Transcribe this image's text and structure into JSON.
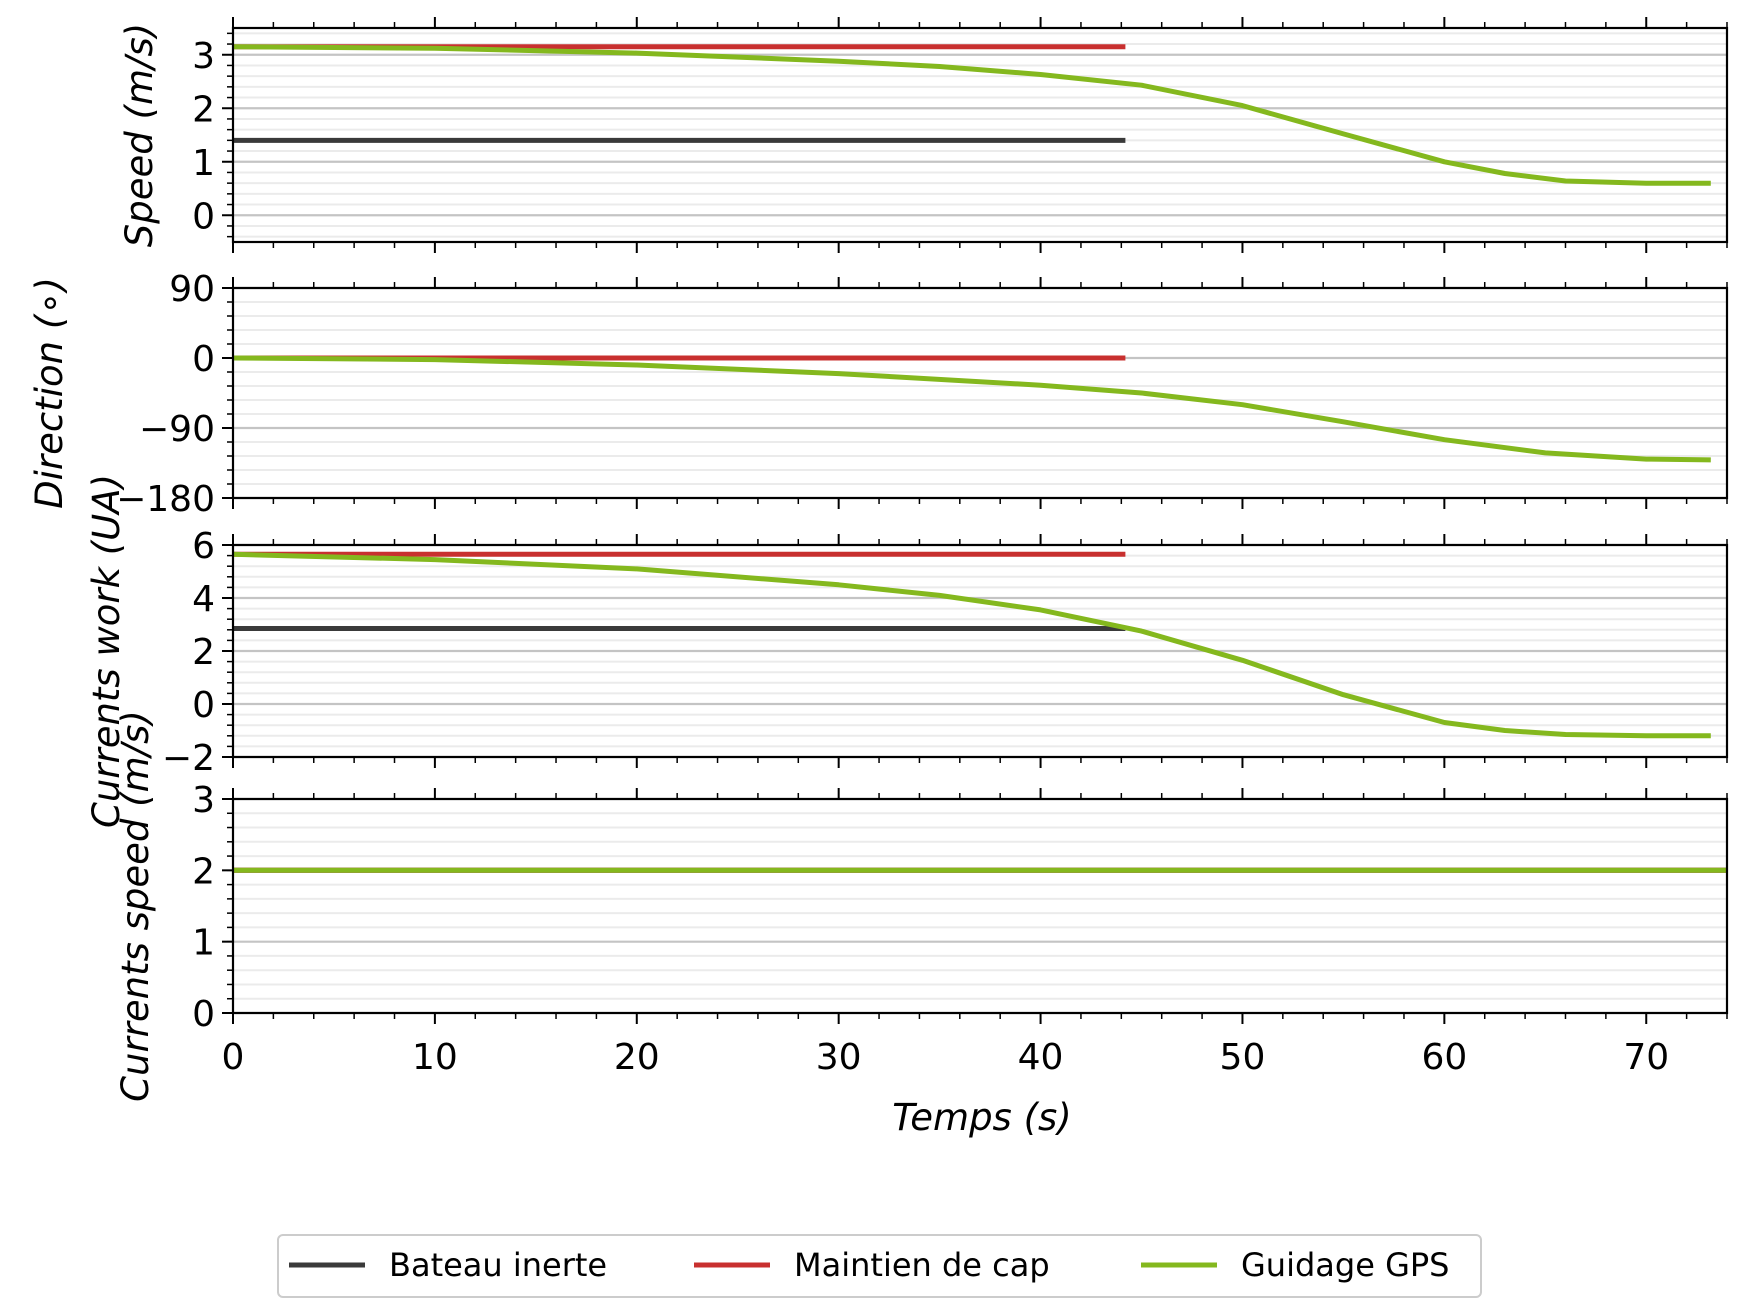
{
  "chart_data": {
    "type": "line",
    "x_axis": {
      "label": "Temps (s)",
      "range": [
        0,
        74
      ],
      "ticks": [
        0,
        10,
        20,
        30,
        40,
        50,
        60,
        70
      ],
      "tick_labels": [
        "0",
        "10",
        "20",
        "30",
        "40",
        "50",
        "60",
        "70"
      ]
    },
    "legend": {
      "placement": "bottom-center",
      "entries": [
        {
          "label": "Bateau inerte",
          "color": "#3a3a3a"
        },
        {
          "label": "Maintien de cap",
          "color": "#c8302f"
        },
        {
          "label": "Guidage GPS",
          "color": "#84b81e"
        }
      ]
    },
    "grid": true,
    "subplots": [
      {
        "ylabel": "Speed (m/s)",
        "ylim": [
          -0.5,
          3.5
        ],
        "yticks": [
          0,
          1,
          2,
          3
        ],
        "ytick_labels": [
          "0",
          "1",
          "2",
          "3"
        ],
        "series": [
          {
            "name": "Bateau inerte",
            "color": "#3a3a3a",
            "points": [
              [
                0,
                1.4
              ],
              [
                44.2,
                1.4
              ]
            ]
          },
          {
            "name": "Maintien de cap",
            "color": "#c8302f",
            "points": [
              [
                0,
                3.15
              ],
              [
                44.2,
                3.15
              ]
            ]
          },
          {
            "name": "Guidage GPS",
            "color": "#84b81e",
            "points": [
              [
                0,
                3.15
              ],
              [
                10,
                3.12
              ],
              [
                20,
                3.03
              ],
              [
                30,
                2.88
              ],
              [
                35,
                2.78
              ],
              [
                40,
                2.63
              ],
              [
                45,
                2.43
              ],
              [
                50,
                2.05
              ],
              [
                55,
                1.52
              ],
              [
                60,
                1.0
              ],
              [
                63,
                0.78
              ],
              [
                66,
                0.64
              ],
              [
                70,
                0.6
              ],
              [
                73.2,
                0.6
              ]
            ]
          }
        ]
      },
      {
        "ylabel": "Direction (∘)",
        "ylim": [
          -180,
          90
        ],
        "yticks": [
          90,
          0,
          -90,
          -180
        ],
        "ytick_labels": [
          "90",
          "0",
          "−90",
          "−180"
        ],
        "series": [
          {
            "name": "Maintien de cap",
            "color": "#c8302f",
            "points": [
              [
                0,
                0
              ],
              [
                44.2,
                0
              ]
            ]
          },
          {
            "name": "Guidage GPS",
            "color": "#84b81e",
            "points": [
              [
                0,
                0
              ],
              [
                10,
                -2
              ],
              [
                20,
                -9
              ],
              [
                30,
                -20
              ],
              [
                40,
                -35
              ],
              [
                45,
                -45
              ],
              [
                50,
                -60
              ],
              [
                55,
                -82
              ],
              [
                60,
                -105
              ],
              [
                65,
                -122
              ],
              [
                70,
                -130
              ],
              [
                73.2,
                -131
              ]
            ]
          }
        ]
      },
      {
        "ylabel": "Currents work (UA)",
        "ylim": [
          -2,
          6
        ],
        "yticks": [
          6,
          4,
          2,
          0,
          -2
        ],
        "ytick_labels": [
          "6",
          "4",
          "2",
          "0",
          "−2"
        ],
        "series": [
          {
            "name": "Bateau inerte",
            "color": "#3a3a3a",
            "points": [
              [
                0,
                2.85
              ],
              [
                44.2,
                2.85
              ]
            ]
          },
          {
            "name": "Maintien de cap",
            "color": "#c8302f",
            "points": [
              [
                0,
                5.65
              ],
              [
                44.2,
                5.65
              ]
            ]
          },
          {
            "name": "Guidage GPS",
            "color": "#84b81e",
            "points": [
              [
                0,
                5.65
              ],
              [
                10,
                5.45
              ],
              [
                20,
                5.1
              ],
              [
                30,
                4.5
              ],
              [
                35,
                4.1
              ],
              [
                40,
                3.55
              ],
              [
                45,
                2.75
              ],
              [
                50,
                1.65
              ],
              [
                55,
                0.35
              ],
              [
                60,
                -0.7
              ],
              [
                63,
                -1.0
              ],
              [
                66,
                -1.15
              ],
              [
                70,
                -1.2
              ],
              [
                73.2,
                -1.2
              ]
            ]
          }
        ]
      },
      {
        "ylabel": "Currents speed (m/s)",
        "ylim": [
          0,
          3
        ],
        "yticks": [
          3,
          2,
          1,
          0
        ],
        "ytick_labels": [
          "3",
          "2",
          "1",
          "0"
        ],
        "series": [
          {
            "name": "Bateau inerte",
            "color": "#3a3a3a",
            "points": [
              [
                0,
                2
              ],
              [
                74,
                2
              ]
            ]
          },
          {
            "name": "Maintien de cap",
            "color": "#c8302f",
            "points": [
              [
                0,
                2
              ],
              [
                74,
                2
              ]
            ]
          },
          {
            "name": "Guidage GPS",
            "color": "#84b81e",
            "points": [
              [
                0,
                2
              ],
              [
                74,
                2
              ]
            ]
          }
        ]
      }
    ]
  }
}
